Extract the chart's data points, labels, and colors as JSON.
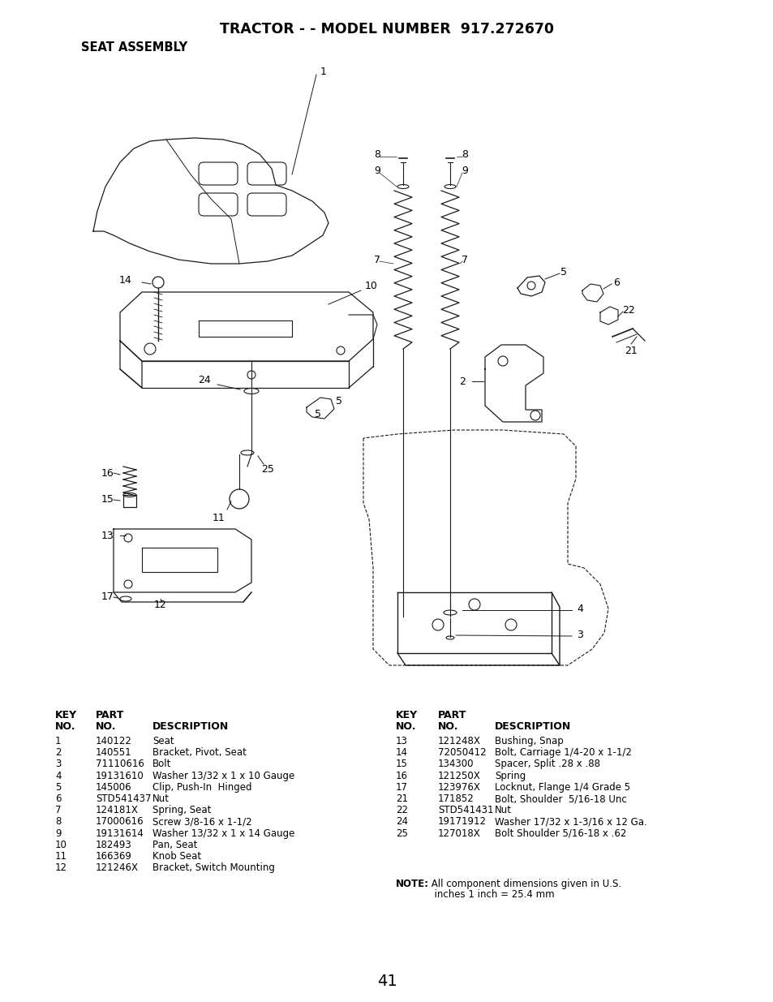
{
  "title": "TRACTOR - - MODEL NUMBER  917.272670",
  "subtitle": "SEAT ASSEMBLY",
  "page_number": "41",
  "background_color": "#ffffff",
  "text_color": "#000000",
  "parts_left": [
    [
      "1",
      "140122",
      "Seat"
    ],
    [
      "2",
      "140551",
      "Bracket, Pivot, Seat"
    ],
    [
      "3",
      "71110616",
      "Bolt"
    ],
    [
      "4",
      "19131610",
      "Washer 13/32 x 1 x 10 Gauge"
    ],
    [
      "5",
      "145006",
      "Clip, Push-In  Hinged"
    ],
    [
      "6",
      "STD541437",
      "Nut"
    ],
    [
      "7",
      "124181X",
      "Spring, Seat"
    ],
    [
      "8",
      "17000616",
      "Screw 3/8-16 x 1-1/2"
    ],
    [
      "9",
      "19131614",
      "Washer 13/32 x 1 x 14 Gauge"
    ],
    [
      "10",
      "182493",
      "Pan, Seat"
    ],
    [
      "11",
      "166369",
      "Knob Seat"
    ],
    [
      "12",
      "121246X",
      "Bracket, Switch Mounting"
    ]
  ],
  "parts_right": [
    [
      "13",
      "121248X",
      "Bushing, Snap"
    ],
    [
      "14",
      "72050412",
      "Bolt, Carriage 1/4-20 x 1-1/2"
    ],
    [
      "15",
      "134300",
      "Spacer, Split .28 x .88"
    ],
    [
      "16",
      "121250X",
      "Spring"
    ],
    [
      "17",
      "123976X",
      "Locknut, Flange 1/4 Grade 5"
    ],
    [
      "21",
      "171852",
      "Bolt, Shoulder  5/16-18 Unc"
    ],
    [
      "22",
      "STD541431",
      "Nut"
    ],
    [
      "24",
      "19171912",
      "Washer 17/32 x 1-3/16 x 12 Ga."
    ],
    [
      "25",
      "127018X",
      "Bolt Shoulder 5/16-18 x .62"
    ]
  ]
}
